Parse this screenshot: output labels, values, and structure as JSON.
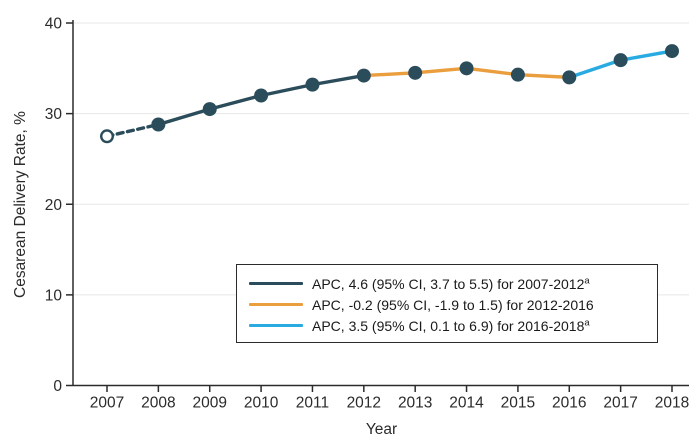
{
  "chart_data": {
    "type": "line",
    "title": "",
    "xlabel": "Year",
    "ylabel": "Cesarean Delivery Rate, %",
    "x": [
      2007,
      2008,
      2009,
      2010,
      2011,
      2012,
      2013,
      2014,
      2015,
      2016,
      2017,
      2018
    ],
    "values": [
      27.5,
      28.8,
      30.5,
      32.0,
      33.2,
      34.2,
      34.5,
      35.0,
      34.3,
      34.0,
      35.9,
      36.9
    ],
    "ylim": [
      0,
      40
    ],
    "yticks": [
      0,
      10,
      20,
      30,
      40
    ],
    "grid": true,
    "legend_position": "lower-center-right-inside",
    "open_marker_years": [
      2007
    ],
    "colors": {
      "marker": "#2B4C5A",
      "teal": "#2B4C5A",
      "orange": "#EA9E3E",
      "cyan": "#29ABE2",
      "grid": "#E7E7E7",
      "axis": "#2B2B2B"
    },
    "segments": [
      {
        "name": "2007-2008-dashed",
        "from": 0,
        "to": 1,
        "color": "#2B4C5A",
        "dashed": true
      },
      {
        "name": "2008-2012-solid",
        "from": 1,
        "to": 5,
        "color": "#2B4C5A",
        "dashed": false
      },
      {
        "name": "2012-2016-solid",
        "from": 5,
        "to": 9,
        "color": "#EA9E3E",
        "dashed": false
      },
      {
        "name": "2016-2018-solid",
        "from": 9,
        "to": 11,
        "color": "#29ABE2",
        "dashed": false
      }
    ]
  },
  "legend": {
    "entries": [
      {
        "color": "#2B4C5A",
        "label": "APC, 4.6 (95% CI, 3.7 to 5.5) for 2007-2012",
        "sup": "a"
      },
      {
        "color": "#EA9E3E",
        "label": "APC, -0.2 (95% CI, -1.9 to 1.5) for 2012-2016",
        "sup": ""
      },
      {
        "color": "#29ABE2",
        "label": "APC, 3.5 (95% CI, 0.1 to 6.9) for 2016-2018",
        "sup": "a"
      }
    ]
  }
}
